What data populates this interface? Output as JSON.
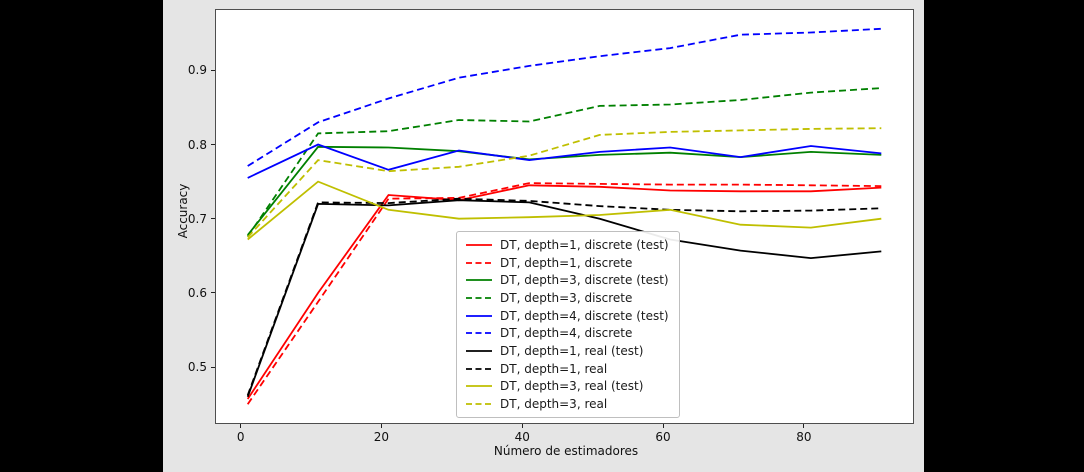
{
  "colors": {
    "letterbox": "#000000",
    "figure_background": "#e5e5e5",
    "plot_background": "#ffffff",
    "axis_frame": "#4e4e4e",
    "tick_text": "#111111",
    "legend_border": "#bfbfbf",
    "red": "#ff0000",
    "green": "#008000",
    "blue": "#0000ff",
    "black": "#000000",
    "yellow": "#bfbf00"
  },
  "chart_data": {
    "type": "line",
    "title": "",
    "xlabel": "Número de estimadores",
    "ylabel": "Accuracy",
    "grid": false,
    "legend_position": "inside lower-right of axes",
    "xlim": [
      -3.5,
      95.5
    ],
    "ylim": [
      0.4247,
      0.9813
    ],
    "xticks": [
      {
        "v": 0,
        "label": "0"
      },
      {
        "v": 20,
        "label": "20"
      },
      {
        "v": 40,
        "label": "40"
      },
      {
        "v": 60,
        "label": "60"
      },
      {
        "v": 80,
        "label": "80"
      }
    ],
    "yticks": [
      {
        "v": 0.5,
        "label": "0.5"
      },
      {
        "v": 0.6,
        "label": "0.6"
      },
      {
        "v": 0.7,
        "label": "0.7"
      },
      {
        "v": 0.8,
        "label": "0.8"
      },
      {
        "v": 0.9,
        "label": "0.9"
      }
    ],
    "x": [
      1,
      11,
      21,
      31,
      41,
      51,
      61,
      71,
      81,
      91
    ],
    "series": [
      {
        "name": "DT, depth=1, discrete (test)",
        "color": "#ff0000",
        "style": "solid",
        "values": [
          0.457,
          0.6,
          0.732,
          0.725,
          0.745,
          0.743,
          0.738,
          0.737,
          0.737,
          0.742
        ]
      },
      {
        "name": "DT, depth=1, discrete",
        "color": "#ff0000",
        "style": "dashed",
        "values": [
          0.45,
          0.588,
          0.727,
          0.728,
          0.748,
          0.747,
          0.746,
          0.746,
          0.745,
          0.744
        ]
      },
      {
        "name": "DT, depth=3, discrete (test)",
        "color": "#008000",
        "style": "solid",
        "values": [
          0.678,
          0.797,
          0.796,
          0.791,
          0.78,
          0.786,
          0.789,
          0.783,
          0.79,
          0.786
        ]
      },
      {
        "name": "DT, depth=3, discrete",
        "color": "#008000",
        "style": "dashed",
        "values": [
          0.676,
          0.815,
          0.818,
          0.833,
          0.831,
          0.852,
          0.854,
          0.86,
          0.87,
          0.876
        ]
      },
      {
        "name": "DT, depth=4, discrete (test)",
        "color": "#0000ff",
        "style": "solid",
        "values": [
          0.755,
          0.8,
          0.766,
          0.792,
          0.779,
          0.79,
          0.796,
          0.783,
          0.798,
          0.788
        ]
      },
      {
        "name": "DT, depth=4, discrete",
        "color": "#0000ff",
        "style": "dashed",
        "values": [
          0.771,
          0.83,
          0.862,
          0.89,
          0.906,
          0.919,
          0.93,
          0.948,
          0.951,
          0.956
        ]
      },
      {
        "name": "DT, depth=1, real (test)",
        "color": "#000000",
        "style": "solid",
        "values": [
          0.46,
          0.72,
          0.718,
          0.725,
          0.722,
          0.7,
          0.672,
          0.657,
          0.647,
          0.656
        ]
      },
      {
        "name": "DT, depth=1, real",
        "color": "#000000",
        "style": "dashed",
        "values": [
          0.462,
          0.722,
          0.721,
          0.727,
          0.724,
          0.717,
          0.712,
          0.71,
          0.711,
          0.714
        ]
      },
      {
        "name": "DT, depth=3, real (test)",
        "color": "#bfbf00",
        "style": "solid",
        "values": [
          0.672,
          0.75,
          0.712,
          0.7,
          0.702,
          0.705,
          0.712,
          0.692,
          0.688,
          0.7
        ]
      },
      {
        "name": "DT, depth=3, real",
        "color": "#bfbf00",
        "style": "dashed",
        "values": [
          0.675,
          0.779,
          0.764,
          0.77,
          0.785,
          0.813,
          0.817,
          0.819,
          0.821,
          0.822
        ]
      }
    ]
  }
}
